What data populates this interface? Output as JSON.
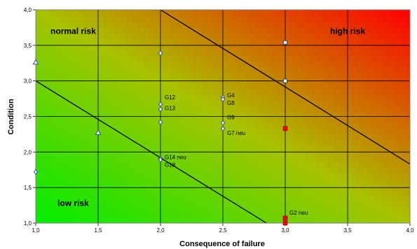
{
  "chart_data": {
    "type": "scatter",
    "xlabel": "Consequence of failure",
    "ylabel": "Condition",
    "xlim": [
      1.0,
      4.0
    ],
    "ylim": [
      1.0,
      4.0
    ],
    "x_ticks": [
      "1,0",
      "1,5",
      "2,0",
      "2,5",
      "3,0",
      "3,5",
      "4,0"
    ],
    "y_ticks": [
      "1,0",
      "1,5",
      "2,0",
      "2,5",
      "3,0",
      "3,5",
      "4,0"
    ],
    "grid": true,
    "background": "gradient green (bottom-left) to red (top-right)",
    "zone_labels": [
      {
        "text": "normal risk",
        "x": 1.3,
        "y": 3.7
      },
      {
        "text": "high risk",
        "x": 3.5,
        "y": 3.7
      },
      {
        "text": "low risk",
        "x": 1.3,
        "y": 1.28
      }
    ],
    "lines": [
      {
        "from": [
          1.0,
          3.0
        ],
        "to": [
          2.85,
          1.0
        ]
      },
      {
        "from": [
          2.0,
          4.0
        ],
        "to": [
          4.0,
          1.83
        ]
      }
    ],
    "series": [
      {
        "marker": "diamond",
        "color": "#2b4fa0",
        "points": [
          {
            "x": 1.0,
            "y": 1.72,
            "label": ""
          },
          {
            "x": 2.0,
            "y": 3.39,
            "label": ""
          },
          {
            "x": 2.0,
            "y": 2.67,
            "label": "G12"
          },
          {
            "x": 2.0,
            "y": 2.6,
            "label": "G13"
          },
          {
            "x": 2.0,
            "y": 2.42,
            "label": ""
          },
          {
            "x": 2.0,
            "y": 1.91,
            "label": "G14 neu"
          },
          {
            "x": 2.0,
            "y": 1.89,
            "label": "G18"
          },
          {
            "x": 2.5,
            "y": 2.77,
            "label": "G4"
          },
          {
            "x": 2.5,
            "y": 2.74,
            "label": "G8"
          },
          {
            "x": 2.5,
            "y": 2.41,
            "label": "G9"
          },
          {
            "x": 2.5,
            "y": 2.33,
            "label": "G7 neu"
          }
        ]
      },
      {
        "marker": "triangle",
        "color": "#2b4fa0",
        "points": [
          {
            "x": 1.0,
            "y": 3.26,
            "label": ""
          },
          {
            "x": 1.5,
            "y": 2.27,
            "label": ""
          }
        ]
      },
      {
        "marker": "square-open",
        "color": "#2b4fa0",
        "points": [
          {
            "x": 3.0,
            "y": 3.54,
            "label": ""
          },
          {
            "x": 3.0,
            "y": 3.0,
            "label": ""
          }
        ]
      },
      {
        "marker": "square-filled",
        "color": "#ff0000",
        "points": [
          {
            "x": 3.0,
            "y": 2.33,
            "label": ""
          },
          {
            "x": 3.0,
            "y": 1.07,
            "label": "G2 neu"
          },
          {
            "x": 3.0,
            "y": 1.0,
            "label": ""
          }
        ]
      }
    ]
  }
}
